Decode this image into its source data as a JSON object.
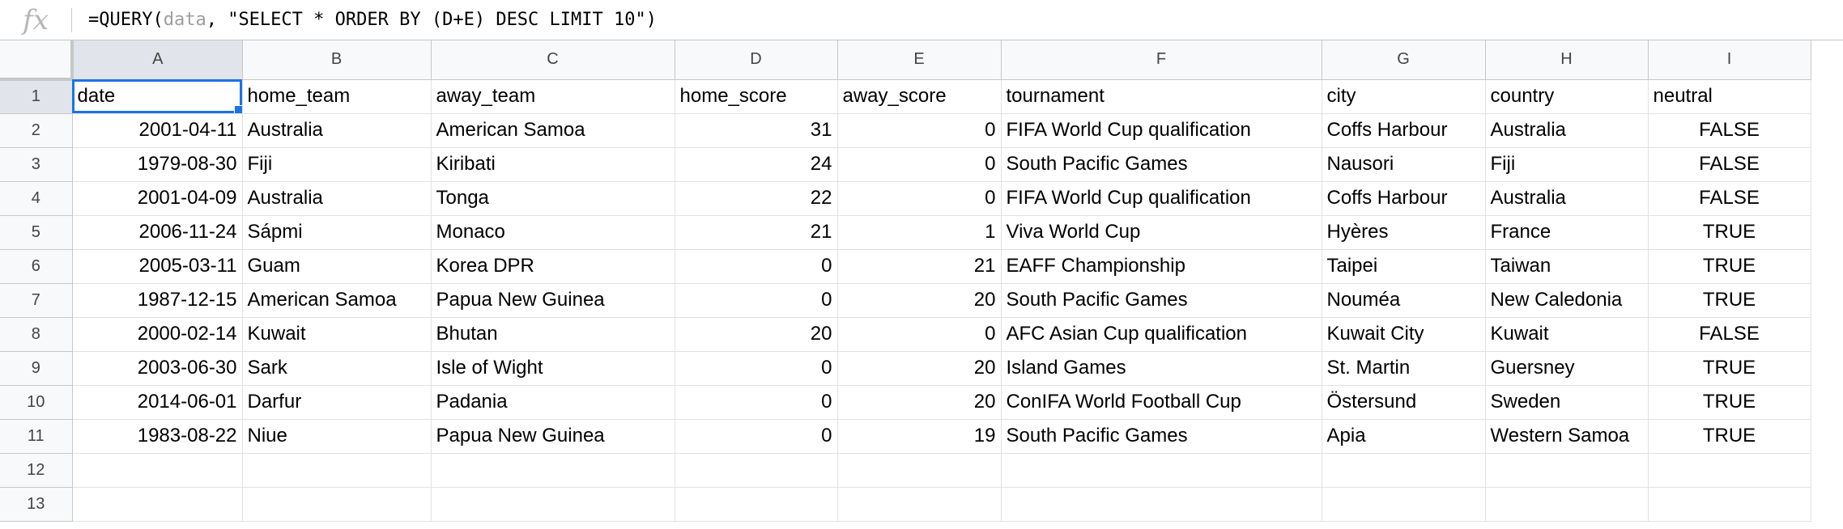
{
  "formula_bar": {
    "fx_label": "fx",
    "prefix": "=QUERY(",
    "range": "data",
    "suffix": ", \"SELECT * ORDER BY (D+E) DESC LIMIT 10\")"
  },
  "sheet": {
    "column_letters": [
      "A",
      "B",
      "C",
      "D",
      "E",
      "F",
      "G",
      "H",
      "I"
    ],
    "row_numbers": [
      "1",
      "2",
      "3",
      "4",
      "5",
      "6",
      "7",
      "8",
      "9",
      "10",
      "11",
      "12",
      "13"
    ],
    "headers": [
      "date",
      "home_team",
      "away_team",
      "home_score",
      "away_score",
      "tournament",
      "city",
      "country",
      "neutral"
    ],
    "rows": [
      [
        "2001-04-11",
        "Australia",
        "American Samoa",
        "31",
        "0",
        "FIFA World Cup qualification",
        "Coffs Harbour",
        "Australia",
        "FALSE"
      ],
      [
        "1979-08-30",
        "Fiji",
        "Kiribati",
        "24",
        "0",
        "South Pacific Games",
        "Nausori",
        "Fiji",
        "FALSE"
      ],
      [
        "2001-04-09",
        "Australia",
        "Tonga",
        "22",
        "0",
        "FIFA World Cup qualification",
        "Coffs Harbour",
        "Australia",
        "FALSE"
      ],
      [
        "2006-11-24",
        "Sápmi",
        "Monaco",
        "21",
        "1",
        "Viva World Cup",
        "Hyères",
        "France",
        "TRUE"
      ],
      [
        "2005-03-11",
        "Guam",
        "Korea DPR",
        "0",
        "21",
        "EAFF Championship",
        "Taipei",
        "Taiwan",
        "TRUE"
      ],
      [
        "1987-12-15",
        "American Samoa",
        "Papua New Guinea",
        "0",
        "20",
        "South Pacific Games",
        "Nouméa",
        "New Caledonia",
        "TRUE"
      ],
      [
        "2000-02-14",
        "Kuwait",
        "Bhutan",
        "20",
        "0",
        "AFC Asian Cup qualification",
        "Kuwait City",
        "Kuwait",
        "FALSE"
      ],
      [
        "2003-06-30",
        "Sark",
        "Isle of Wight",
        "0",
        "20",
        "Island Games",
        "St. Martin",
        "Guersney",
        "TRUE"
      ],
      [
        "2014-06-01",
        "Darfur",
        "Padania",
        "0",
        "20",
        "ConIFA World Football Cup",
        "Östersund",
        "Sweden",
        "TRUE"
      ],
      [
        "1983-08-22",
        "Niue",
        "Papua New Guinea",
        "0",
        "19",
        "South Pacific Games",
        "Apia",
        "Western Samoa",
        "TRUE"
      ]
    ]
  },
  "colors": {
    "selection": "#1a73e8",
    "header_bg": "#f8f9fa",
    "active_header_bg": "#e1e5eb",
    "gridline": "#e2e2e2"
  }
}
